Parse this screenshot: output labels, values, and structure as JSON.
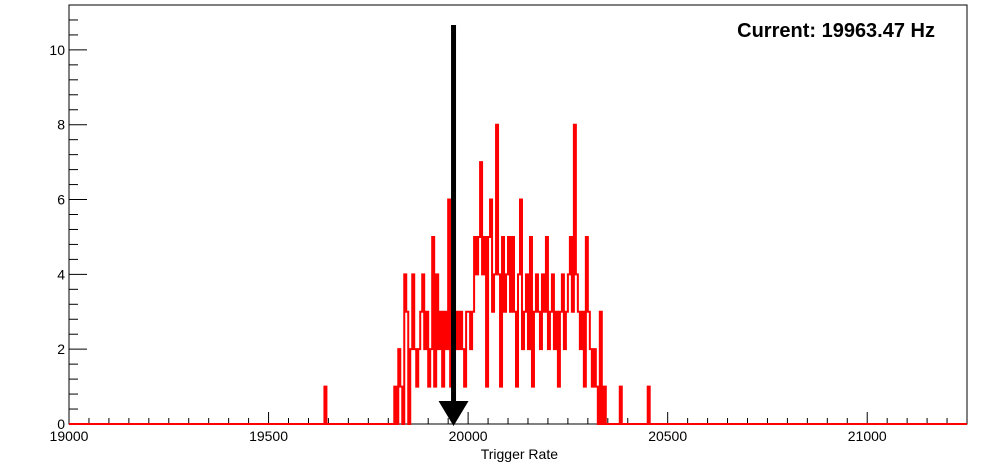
{
  "chart_data": {
    "type": "histogram",
    "xlabel": "Trigger Rate",
    "ylabel": "",
    "xlim": [
      19000,
      21250
    ],
    "ylim": [
      0,
      11.2
    ],
    "bin_width": 5,
    "x_ticks": [
      "19000",
      "19500",
      "20000",
      "20500",
      "21000"
    ],
    "y_ticks": [
      "0",
      "2",
      "4",
      "6",
      "8",
      "10"
    ],
    "grid": false,
    "line_color": "#ff0000",
    "annotation": {
      "text": "Current: 19963.47 Hz",
      "arrow_x": 19963.47,
      "arrow_color": "#000000"
    },
    "bins": [
      [
        19640,
        1
      ],
      [
        19815,
        1
      ],
      [
        19825,
        2
      ],
      [
        19830,
        1
      ],
      [
        19840,
        4
      ],
      [
        19845,
        3
      ],
      [
        19855,
        2
      ],
      [
        19860,
        4
      ],
      [
        19865,
        2
      ],
      [
        19870,
        1
      ],
      [
        19875,
        2
      ],
      [
        19880,
        3
      ],
      [
        19885,
        4
      ],
      [
        19890,
        2
      ],
      [
        19895,
        3
      ],
      [
        19900,
        1
      ],
      [
        19905,
        2
      ],
      [
        19910,
        5
      ],
      [
        19915,
        1
      ],
      [
        19920,
        4
      ],
      [
        19925,
        2
      ],
      [
        19930,
        3
      ],
      [
        19935,
        1
      ],
      [
        19940,
        3
      ],
      [
        19945,
        2
      ],
      [
        19950,
        6
      ],
      [
        19955,
        1
      ],
      [
        19960,
        3
      ],
      [
        19965,
        2
      ],
      [
        19970,
        3
      ],
      [
        19975,
        2
      ],
      [
        19980,
        3
      ],
      [
        19985,
        2
      ],
      [
        19990,
        1
      ],
      [
        19995,
        3
      ],
      [
        20000,
        3
      ],
      [
        20005,
        2
      ],
      [
        20010,
        3
      ],
      [
        20015,
        5
      ],
      [
        20020,
        4
      ],
      [
        20025,
        5
      ],
      [
        20030,
        7
      ],
      [
        20035,
        4
      ],
      [
        20040,
        5
      ],
      [
        20045,
        1
      ],
      [
        20050,
        5
      ],
      [
        20055,
        6
      ],
      [
        20060,
        3
      ],
      [
        20065,
        4
      ],
      [
        20070,
        8
      ],
      [
        20075,
        4
      ],
      [
        20080,
        1
      ],
      [
        20085,
        5
      ],
      [
        20090,
        3
      ],
      [
        20095,
        4
      ],
      [
        20100,
        5
      ],
      [
        20105,
        3
      ],
      [
        20110,
        5
      ],
      [
        20115,
        3
      ],
      [
        20120,
        1
      ],
      [
        20125,
        4
      ],
      [
        20130,
        6
      ],
      [
        20135,
        2
      ],
      [
        20140,
        3
      ],
      [
        20145,
        4
      ],
      [
        20150,
        2
      ],
      [
        20155,
        5
      ],
      [
        20160,
        1
      ],
      [
        20165,
        3
      ],
      [
        20170,
        4
      ],
      [
        20175,
        3
      ],
      [
        20180,
        2
      ],
      [
        20185,
        4
      ],
      [
        20190,
        3
      ],
      [
        20195,
        5
      ],
      [
        20200,
        2
      ],
      [
        20205,
        3
      ],
      [
        20210,
        4
      ],
      [
        20215,
        2
      ],
      [
        20220,
        3
      ],
      [
        20225,
        1
      ],
      [
        20230,
        3
      ],
      [
        20235,
        4
      ],
      [
        20240,
        2
      ],
      [
        20245,
        3
      ],
      [
        20250,
        4
      ],
      [
        20255,
        5
      ],
      [
        20260,
        3
      ],
      [
        20265,
        8
      ],
      [
        20270,
        4
      ],
      [
        20275,
        3
      ],
      [
        20280,
        2
      ],
      [
        20285,
        3
      ],
      [
        20290,
        1
      ],
      [
        20295,
        5
      ],
      [
        20300,
        3
      ],
      [
        20305,
        2
      ],
      [
        20310,
        1
      ],
      [
        20315,
        2
      ],
      [
        20320,
        1
      ],
      [
        20330,
        3
      ],
      [
        20340,
        1
      ],
      [
        20380,
        1
      ],
      [
        20450,
        1
      ]
    ]
  }
}
